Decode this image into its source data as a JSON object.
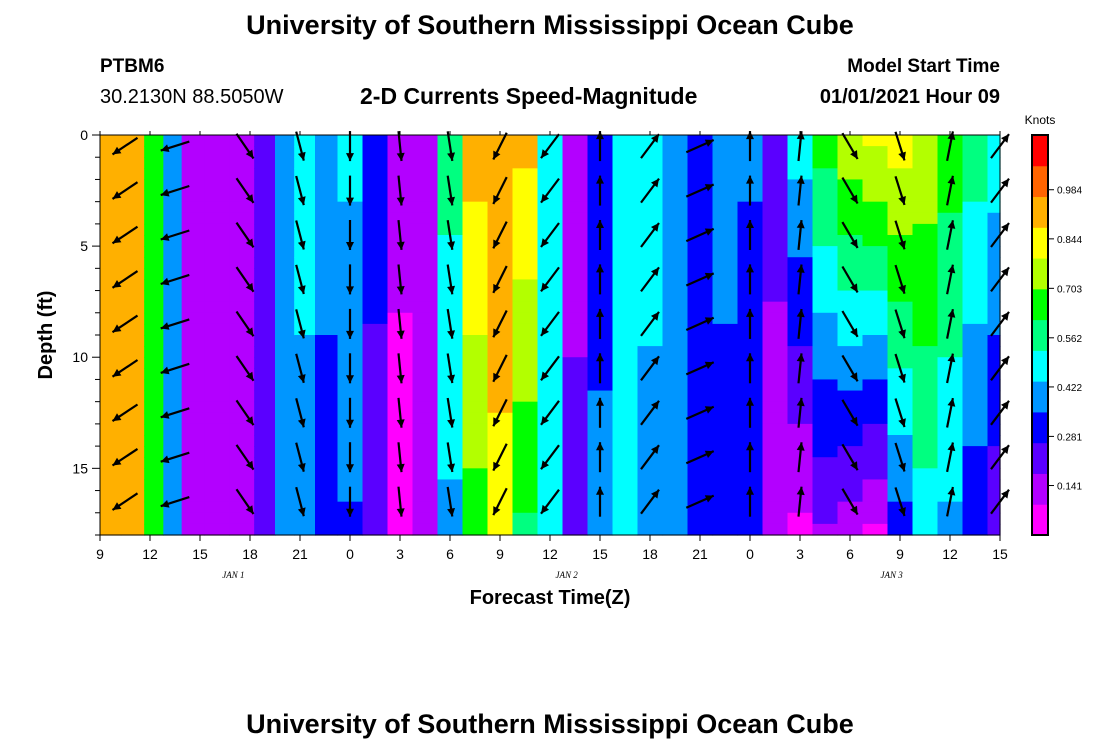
{
  "header": {
    "title": "University of Southern Mississippi Ocean Cube",
    "station_id": "PTBM6",
    "station_coords": "30.2130N 88.5050W",
    "model_start_label": "Model Start Time",
    "model_start_value": "01/01/2021 Hour 09"
  },
  "footer": {
    "title": "University of Southern Mississippi Ocean Cube"
  },
  "chart_data": {
    "type": "heatmap",
    "title": "2-D Currents Speed-Magnitude",
    "xlabel": "Forecast Time(Z)",
    "ylabel": "Depth (ft)",
    "colorbar_label": "Knots",
    "x_start_hour": 9,
    "x_range_hours": [
      0,
      54
    ],
    "y_range": [
      0,
      18
    ],
    "y_inverted": true,
    "x_ticks": [
      "9",
      "12",
      "15",
      "18",
      "21",
      "0",
      "3",
      "6",
      "9",
      "12",
      "15",
      "18",
      "21",
      "0",
      "3",
      "6",
      "9",
      "12",
      "15"
    ],
    "y_ticks": [
      "0",
      "5",
      "10",
      "15"
    ],
    "date_labels": [
      "JAN 1",
      "JAN 2",
      "JAN 3"
    ],
    "date_label_hours": [
      8,
      28,
      47.5
    ],
    "colorbar_ticks": [
      "0.141",
      "0.281",
      "0.422",
      "0.562",
      "0.703",
      "0.844",
      "0.984"
    ],
    "colorbar_range": [
      0,
      1.14
    ],
    "colors": {
      "palette": [
        "#ff00ff",
        "#b300ff",
        "#5a00ff",
        "#0000ff",
        "#0096ff",
        "#00ffff",
        "#00ff80",
        "#00ff00",
        "#b3ff00",
        "#ffff00",
        "#ffb000",
        "#ff6400",
        "#ff0000"
      ],
      "grid_line": "#000000",
      "arrow": "#000000"
    },
    "speed_profiles": [
      {
        "hour": 0.5,
        "speed": [
          0.88,
          0.88
        ]
      },
      {
        "hour": 2,
        "speed": [
          0.92,
          0.92
        ]
      },
      {
        "hour": 3.3,
        "speed": [
          0.64,
          0.64
        ]
      },
      {
        "hour": 4.3,
        "speed": [
          0.42,
          0.42
        ]
      },
      {
        "hour": 5.5,
        "speed": [
          0.16,
          0.16
        ]
      },
      {
        "hour": 7,
        "speed": [
          0.1,
          0.1
        ]
      },
      {
        "hour": 8.5,
        "speed": [
          0.14,
          0.14
        ]
      },
      {
        "hour": 10,
        "speed": [
          0.22,
          0.22
        ]
      },
      {
        "hour": 11,
        "speed": [
          0.36,
          0.36
        ]
      },
      {
        "hour": 12.3,
        "speed": [
          0.52,
          0.36
        ]
      },
      {
        "hour": 13.5,
        "speed": [
          0.4,
          0.3
        ]
      },
      {
        "hour": 15,
        "speed": [
          0.46,
          0.34
        ]
      },
      {
        "hour": 16.5,
        "speed": [
          0.3,
          0.22
        ]
      },
      {
        "hour": 18,
        "speed": [
          0.14,
          0.02
        ]
      },
      {
        "hour": 19.5,
        "speed": [
          0.16,
          0.1
        ]
      },
      {
        "hour": 21,
        "speed": [
          0.56,
          0.42
        ]
      },
      {
        "hour": 22.5,
        "speed": [
          0.92,
          0.66
        ]
      },
      {
        "hour": 24,
        "speed": [
          0.96,
          0.84
        ]
      },
      {
        "hour": 25.5,
        "speed": [
          0.9,
          0.6
        ]
      },
      {
        "hour": 27,
        "speed": [
          0.48,
          0.48
        ]
      },
      {
        "hour": 28.5,
        "speed": [
          0.12,
          0.22
        ]
      },
      {
        "hour": 30,
        "speed": [
          0.3,
          0.38
        ]
      },
      {
        "hour": 31.5,
        "speed": [
          0.5,
          0.46
        ]
      },
      {
        "hour": 33,
        "speed": [
          0.48,
          0.4
        ]
      },
      {
        "hour": 34.5,
        "speed": [
          0.4,
          0.36
        ]
      },
      {
        "hour": 36,
        "speed": [
          0.34,
          0.34
        ]
      },
      {
        "hour": 37.5,
        "speed": [
          0.36,
          0.34
        ]
      },
      {
        "hour": 39,
        "speed": [
          0.36,
          0.3
        ]
      },
      {
        "hour": 40.5,
        "speed": [
          0.2,
          0.14
        ]
      },
      {
        "hour": 42,
        "speed": [
          0.48,
          0.06
        ]
      },
      {
        "hour": 43.5,
        "speed": [
          0.66,
          0.16
        ]
      },
      {
        "hour": 45,
        "speed": [
          0.78,
          0.12
        ]
      },
      {
        "hour": 46.5,
        "speed": [
          0.82,
          0.06
        ]
      },
      {
        "hour": 48,
        "speed": [
          0.84,
          0.3
        ]
      },
      {
        "hour": 49.5,
        "speed": [
          0.76,
          0.48
        ]
      },
      {
        "hour": 51,
        "speed": [
          0.66,
          0.42
        ]
      },
      {
        "hour": 52.5,
        "speed": [
          0.58,
          0.28
        ]
      },
      {
        "hour": 54,
        "speed": [
          0.5,
          0.2
        ]
      }
    ],
    "vector_depths": [
      0.5,
      2.5,
      4.5,
      6.5,
      8.5,
      10.5,
      12.5,
      14.5,
      16.5
    ],
    "vectors": [
      {
        "hour": 1.5,
        "u": -0.9,
        "v": -0.6
      },
      {
        "hour": 4.5,
        "u": -0.95,
        "v": -0.3
      },
      {
        "hour": 8.7,
        "u": 0.55,
        "v": -0.8
      },
      {
        "hour": 12,
        "u": 0.25,
        "v": -0.95
      },
      {
        "hour": 15,
        "u": 0.0,
        "v": -1.0
      },
      {
        "hour": 18,
        "u": 0.1,
        "v": -1.0
      },
      {
        "hour": 21,
        "u": 0.15,
        "v": -0.95
      },
      {
        "hour": 24,
        "u": -0.45,
        "v": -0.9
      },
      {
        "hour": 27,
        "u": -0.6,
        "v": -0.8
      },
      {
        "hour": 30,
        "u": 0.0,
        "v": 1.0
      },
      {
        "hour": 33,
        "u": 0.6,
        "v": 0.8
      },
      {
        "hour": 36,
        "u": 0.9,
        "v": 0.4
      },
      {
        "hour": 39,
        "u": 0.0,
        "v": 1.0
      },
      {
        "hour": 42,
        "u": 0.1,
        "v": 1.0
      },
      {
        "hour": 45,
        "u": 0.5,
        "v": -0.85
      },
      {
        "hour": 48,
        "u": 0.3,
        "v": -0.95
      },
      {
        "hour": 51,
        "u": 0.2,
        "v": 1.0
      },
      {
        "hour": 54,
        "u": 0.6,
        "v": 0.8
      }
    ]
  }
}
